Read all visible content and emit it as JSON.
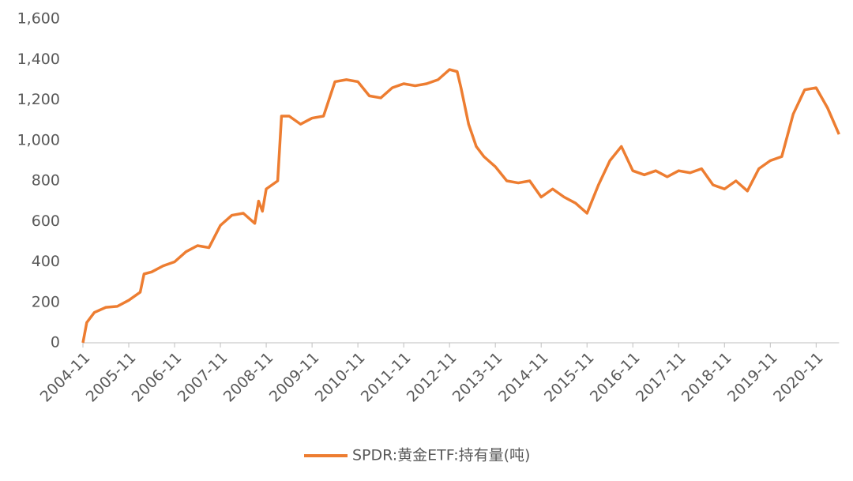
{
  "chart_data": {
    "type": "line",
    "x": [
      "2004-11",
      "2004-12",
      "2005-02",
      "2005-05",
      "2005-08",
      "2005-11",
      "2006-02",
      "2006-03",
      "2006-05",
      "2006-08",
      "2006-11",
      "2007-02",
      "2007-05",
      "2007-08",
      "2007-11",
      "2008-02",
      "2008-05",
      "2008-08",
      "2008-09",
      "2008-10",
      "2008-11",
      "2009-02",
      "2009-03",
      "2009-05",
      "2009-08",
      "2009-11",
      "2010-02",
      "2010-05",
      "2010-08",
      "2010-11",
      "2011-02",
      "2011-05",
      "2011-08",
      "2011-11",
      "2012-02",
      "2012-05",
      "2012-08",
      "2012-11",
      "2013-01",
      "2013-02",
      "2013-04",
      "2013-06",
      "2013-08",
      "2013-11",
      "2014-02",
      "2014-05",
      "2014-08",
      "2014-11",
      "2015-02",
      "2015-05",
      "2015-08",
      "2015-11",
      "2016-02",
      "2016-05",
      "2016-08",
      "2016-11",
      "2017-02",
      "2017-05",
      "2017-08",
      "2017-11",
      "2018-02",
      "2018-05",
      "2018-08",
      "2018-11",
      "2019-02",
      "2019-05",
      "2019-08",
      "2019-11",
      "2020-02",
      "2020-05",
      "2020-08",
      "2020-11",
      "2021-02",
      "2021-05"
    ],
    "series": [
      {
        "name": "SPDR:黄金ETF:持有量(吨)",
        "color": "#ED7D31",
        "values": [
          0,
          100,
          150,
          175,
          180,
          210,
          250,
          340,
          350,
          380,
          400,
          450,
          480,
          470,
          580,
          630,
          640,
          590,
          700,
          650,
          760,
          800,
          1120,
          1120,
          1080,
          1110,
          1120,
          1290,
          1300,
          1290,
          1220,
          1210,
          1260,
          1280,
          1270,
          1280,
          1300,
          1350,
          1340,
          1260,
          1080,
          970,
          920,
          870,
          800,
          790,
          800,
          720,
          760,
          720,
          690,
          640,
          780,
          900,
          970,
          850,
          830,
          850,
          820,
          850,
          840,
          860,
          780,
          760,
          800,
          750,
          860,
          900,
          920,
          1130,
          1250,
          1260,
          1160,
          1030
        ]
      }
    ],
    "xlim": [
      "2004-11",
      "2021-05"
    ],
    "xticks": [
      "2004-11",
      "2005-11",
      "2006-11",
      "2007-11",
      "2008-11",
      "2009-11",
      "2010-11",
      "2011-11",
      "2012-11",
      "2013-11",
      "2014-11",
      "2015-11",
      "2016-11",
      "2017-11",
      "2018-11",
      "2019-11",
      "2020-11"
    ],
    "ylim": [
      0,
      1600
    ],
    "yticks": [
      0,
      200,
      400,
      600,
      800,
      {
        "value": 1000,
        "label": "1,000"
      },
      {
        "value": 1200,
        "label": "1,200"
      },
      {
        "value": 1400,
        "label": "1,400"
      },
      {
        "value": 1600,
        "label": "1,600"
      }
    ],
    "legend": "bottom"
  }
}
